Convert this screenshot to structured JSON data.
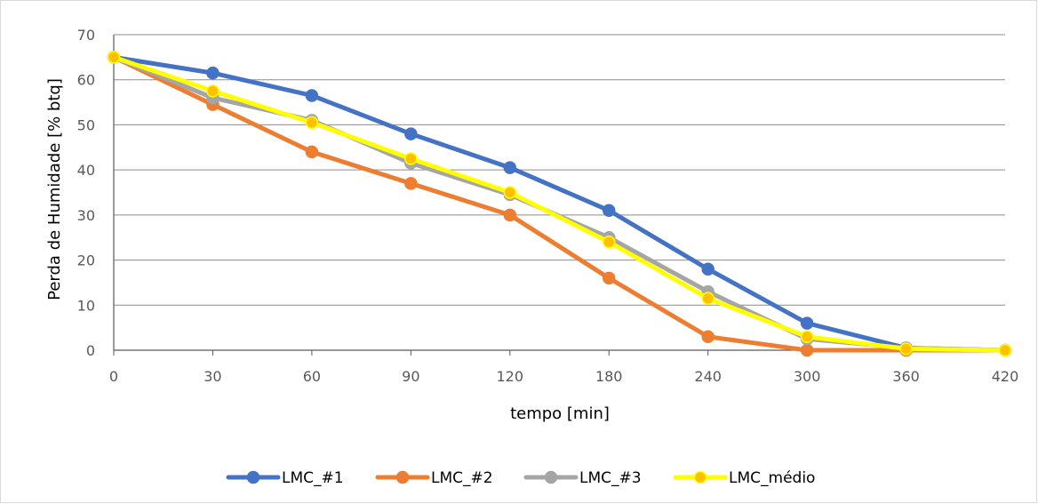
{
  "chart_data": {
    "type": "line",
    "title": "",
    "xlabel": "tempo [min]",
    "ylabel": "Perda de Humidade [% btq]",
    "categories": [
      "0",
      "30",
      "60",
      "90",
      "120",
      "180",
      "240",
      "300",
      "360",
      "420"
    ],
    "ylim": [
      0,
      70
    ],
    "yticks": [
      "0",
      "10",
      "20",
      "30",
      "40",
      "50",
      "60",
      "70"
    ],
    "grid": true,
    "legend_position": "bottom",
    "series": [
      {
        "name": "LMC_#1",
        "color": "#4472C4",
        "values": [
          65,
          61.5,
          56.5,
          48,
          40.5,
          31,
          18,
          6,
          0.5,
          0
        ]
      },
      {
        "name": "LMC_#2",
        "color": "#ED7D31",
        "values": [
          65,
          54.5,
          44,
          37,
          30,
          16,
          3,
          0,
          0,
          0
        ]
      },
      {
        "name": "LMC_#3",
        "color": "#A5A5A5",
        "values": [
          65,
          56,
          51,
          41.5,
          34.5,
          25,
          13,
          2.5,
          0.5,
          0
        ]
      },
      {
        "name": "LMC_médio",
        "color": "#FFFF00",
        "marker_color": "#FFC000",
        "values": [
          65,
          57.5,
          50.5,
          42.5,
          35,
          24,
          11.5,
          3,
          0.3,
          0
        ]
      }
    ]
  }
}
